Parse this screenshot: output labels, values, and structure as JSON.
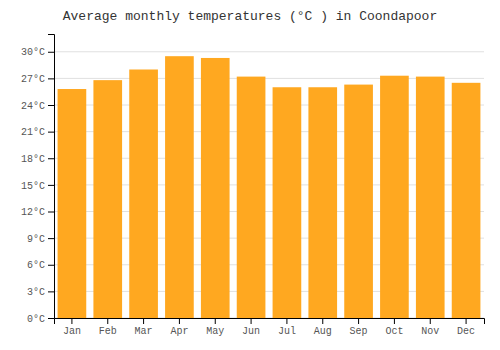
{
  "chart_data": {
    "type": "bar",
    "title": "Average monthly temperatures (°C ) in Coondapoor",
    "categories": [
      "Jan",
      "Feb",
      "Mar",
      "Apr",
      "May",
      "Jun",
      "Jul",
      "Aug",
      "Sep",
      "Oct",
      "Nov",
      "Dec"
    ],
    "values": [
      25.8,
      26.8,
      28.0,
      29.5,
      29.3,
      27.2,
      26.0,
      26.0,
      26.3,
      27.3,
      27.2,
      26.5
    ],
    "color": "#FFA820",
    "ylim": [
      0,
      32
    ],
    "yticks": [
      {
        "value": 0,
        "label": "0°C"
      },
      {
        "value": 3,
        "label": "3°C"
      },
      {
        "value": 6,
        "label": "6°C"
      },
      {
        "value": 9,
        "label": "9°C"
      },
      {
        "value": 12,
        "label": "12°C"
      },
      {
        "value": 15,
        "label": "15°C"
      },
      {
        "value": 18,
        "label": "18°C"
      },
      {
        "value": 21,
        "label": "21°C"
      },
      {
        "value": 24,
        "label": "24°C"
      },
      {
        "value": 27,
        "label": "27°C"
      },
      {
        "value": 30,
        "label": "30°C"
      }
    ],
    "grid": true
  }
}
